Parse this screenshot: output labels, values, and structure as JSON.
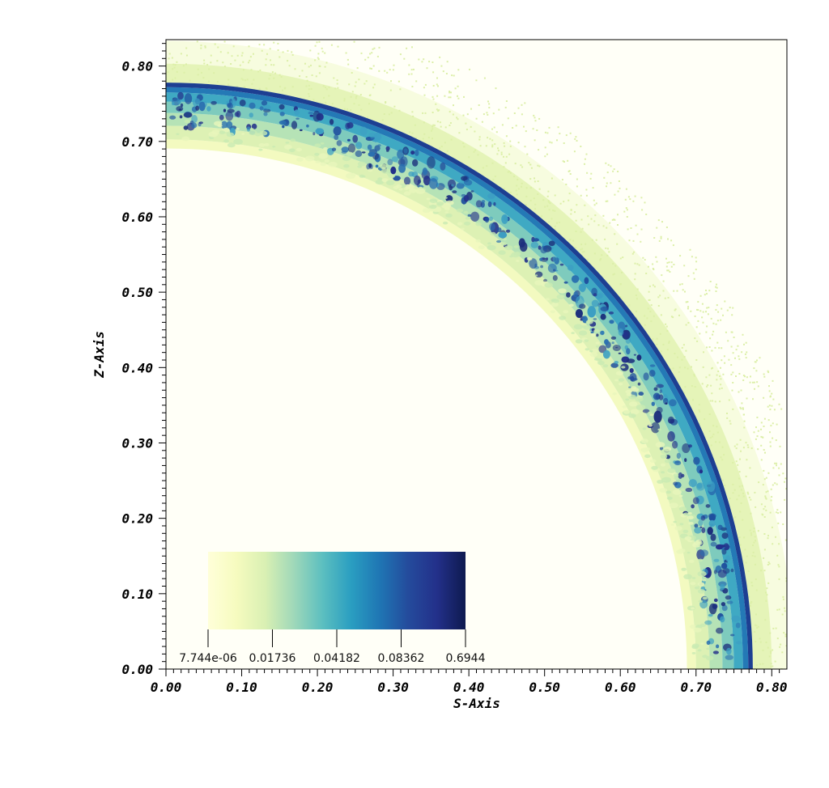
{
  "chart_data": {
    "type": "heatmap",
    "title": "",
    "xlabel": "S-Axis",
    "ylabel": "Z-Axis",
    "xlim": [
      0.0,
      0.82
    ],
    "ylim": [
      0.0,
      0.835
    ],
    "x_ticks": [
      "0.00",
      "0.10",
      "0.20",
      "0.30",
      "0.40",
      "0.50",
      "0.60",
      "0.70",
      "0.80"
    ],
    "y_ticks": [
      "0.00",
      "0.10",
      "0.20",
      "0.30",
      "0.40",
      "0.50",
      "0.60",
      "0.70",
      "0.80"
    ],
    "grid": false,
    "field": {
      "shape": "quarter-shell",
      "outer_radius": 0.775,
      "mixed_layer_inner_radius": 0.7,
      "halo_outer_radius": 0.83
    },
    "colorbar": {
      "placement": "lower-left inset",
      "tick_labels": [
        "7.744e-06",
        "0.01736",
        "0.04182",
        "0.08362",
        "0.6944"
      ],
      "colormap": [
        "#ffffd9",
        "#f6fbbf",
        "#d9f0b3",
        "#9fd8b9",
        "#5cbfc0",
        "#2a9ec1",
        "#1f76b4",
        "#244b9c",
        "#23308a",
        "#0e1a4f"
      ]
    }
  }
}
